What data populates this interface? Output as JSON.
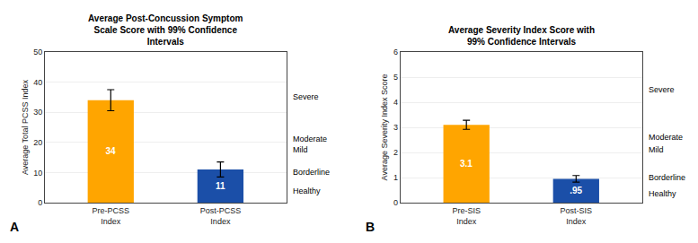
{
  "chart_data": [
    {
      "type": "bar",
      "title": "Average Post-Concussion Symptom\nScale Score with 99% Confidence\nIntervals",
      "ylabel": "Average Total PCSS Index",
      "categories": [
        "Pre-PCSS\nIndex",
        "Post-PCSS\nIndex"
      ],
      "values": [
        34,
        11
      ],
      "errors": [
        3.5,
        2.5
      ],
      "value_labels": [
        "34",
        "11"
      ],
      "data_labels": true,
      "colors": [
        "#FFA500",
        "#1B4FA8"
      ],
      "ylim": [
        0,
        50
      ],
      "yticks": [
        0,
        10,
        20,
        30,
        40,
        50
      ],
      "grid": true,
      "annotations": [
        {
          "y": 35,
          "text": "Severe"
        },
        {
          "y": 21,
          "text": "Moderate"
        },
        {
          "y": 17.5,
          "text": "Mild"
        },
        {
          "y": 10,
          "text": "Borderline"
        },
        {
          "y": 4,
          "text": "Healthy"
        }
      ],
      "panel_label": "A"
    },
    {
      "type": "bar",
      "title": "Average Severity Index Score with\n99% Confidence Intervals",
      "ylabel": "Average Severity Index Score",
      "categories": [
        "Pre-SIS\nIndex",
        "Post-SIS\nIndex"
      ],
      "values": [
        3.1,
        0.95
      ],
      "errors": [
        0.18,
        0.13
      ],
      "value_labels": [
        "3.1",
        ".95"
      ],
      "data_labels": true,
      "colors": [
        "#FFA500",
        "#1B4FA8"
      ],
      "ylim": [
        0,
        6
      ],
      "yticks": [
        0,
        1,
        2,
        3,
        4,
        5,
        6
      ],
      "grid": true,
      "annotations": [
        {
          "y": 4.5,
          "text": "Severe"
        },
        {
          "y": 2.6,
          "text": "Moderate"
        },
        {
          "y": 2.1,
          "text": "Mild"
        },
        {
          "y": 1.0,
          "text": "Borderline"
        },
        {
          "y": 0.35,
          "text": "Healthy"
        }
      ],
      "panel_label": "B"
    }
  ]
}
